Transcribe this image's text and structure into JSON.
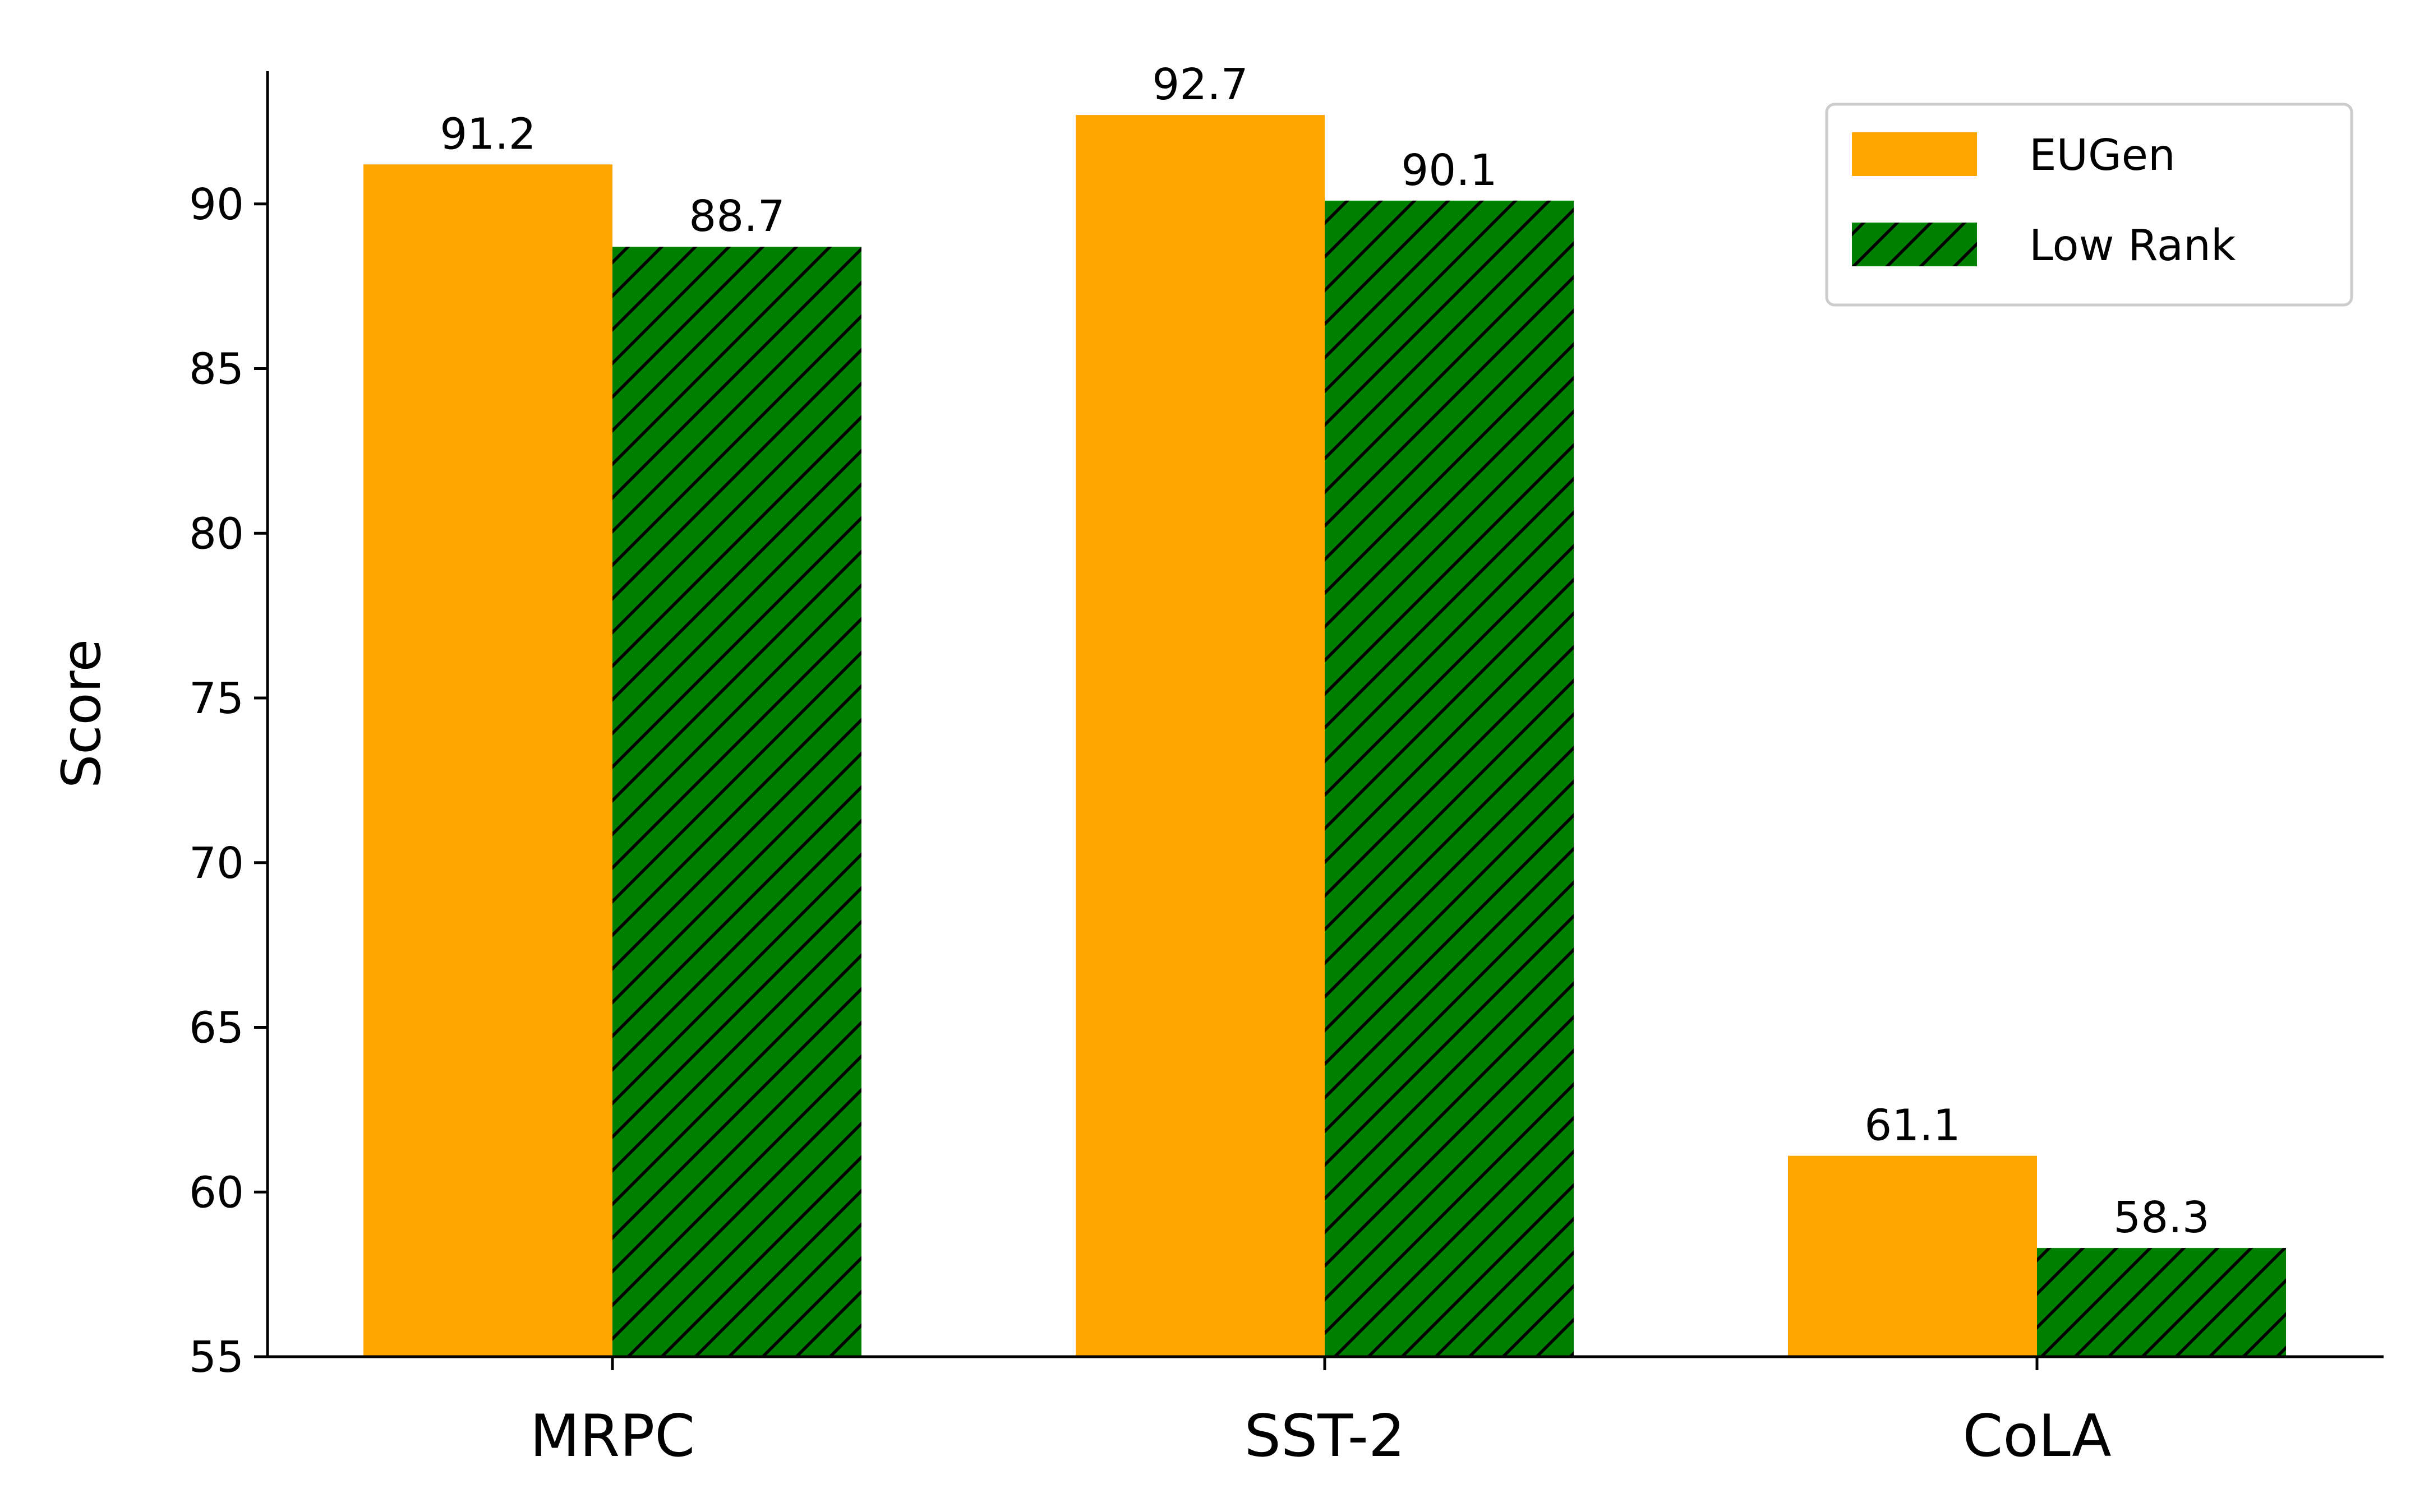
{
  "chart_data": {
    "type": "bar",
    "title": "",
    "xlabel": "",
    "ylabel": "Score",
    "categories": [
      "MRPC",
      "SST-2",
      "CoLA"
    ],
    "series": [
      {
        "name": "EUGen",
        "values": [
          91.2,
          92.7,
          61.1
        ],
        "color": "#FFA500",
        "hatch": false
      },
      {
        "name": "Low Rank",
        "values": [
          88.7,
          90.1,
          58.3
        ],
        "color": "#008000",
        "hatch": true
      }
    ],
    "value_labels": [
      [
        "91.2",
        "92.7",
        "61.1"
      ],
      [
        "88.7",
        "90.1",
        "58.3"
      ]
    ],
    "yticks": [
      "55",
      "60",
      "65",
      "70",
      "75",
      "80",
      "85",
      "90"
    ],
    "ylim": [
      55,
      94
    ],
    "legend_position": "top-right",
    "grid": false
  }
}
